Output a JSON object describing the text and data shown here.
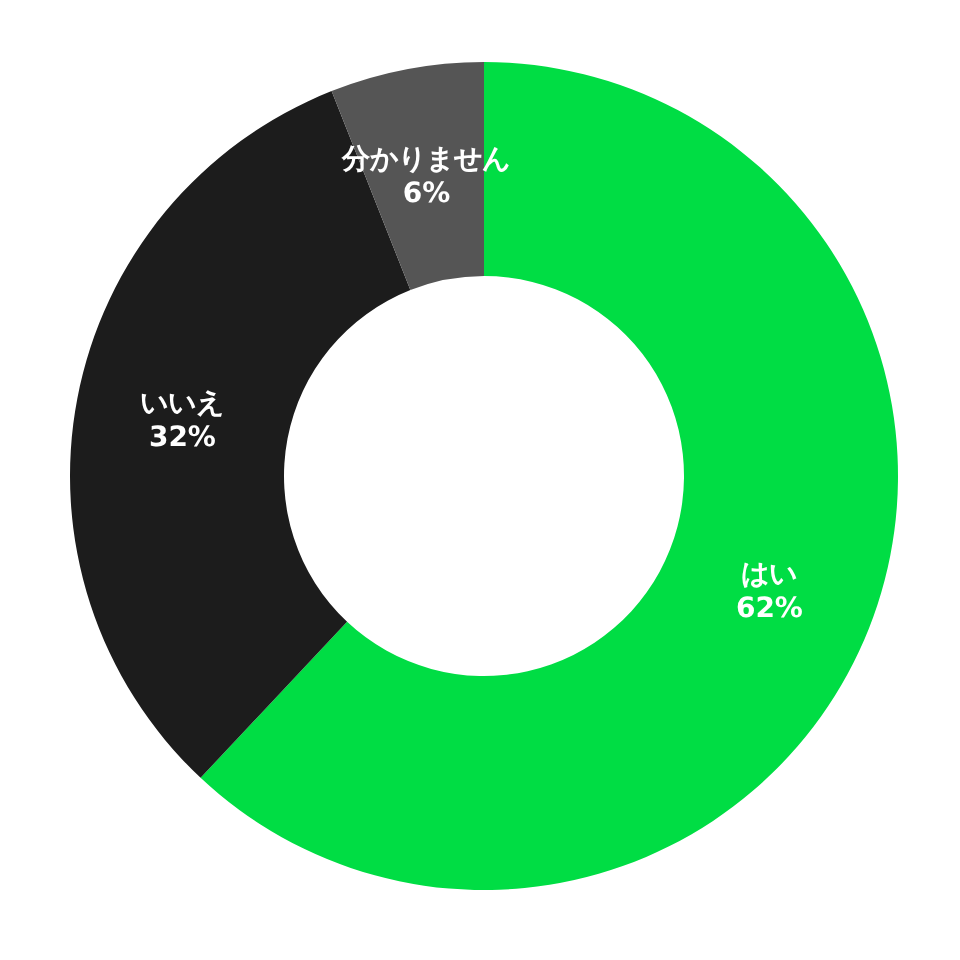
{
  "chart_data": {
    "type": "donut",
    "categories": [
      "はい",
      "いいえ",
      "分かりません"
    ],
    "values": [
      62,
      32,
      6
    ],
    "colors": [
      "#00dd44",
      "#1c1c1c",
      "#555555"
    ],
    "value_labels": [
      "62%",
      "32%",
      "6%"
    ]
  }
}
